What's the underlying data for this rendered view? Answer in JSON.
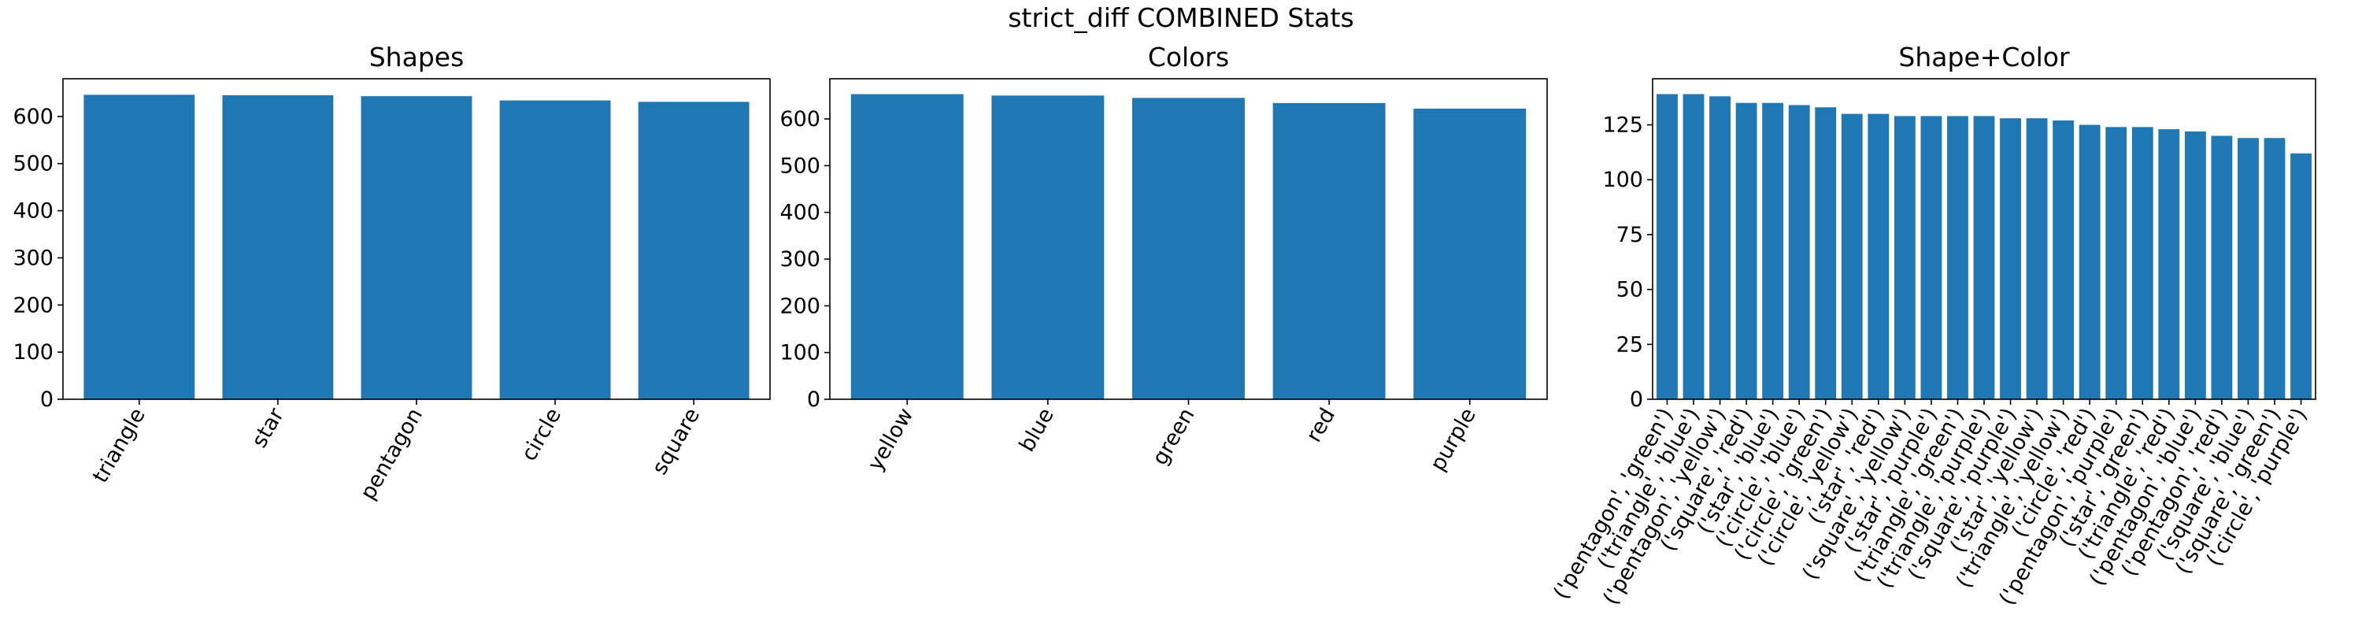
{
  "title": "strict_diff COMBINED Stats",
  "chart_data": [
    {
      "type": "bar",
      "title": "Shapes",
      "color": "#1f77b4",
      "categories": [
        "triangle",
        "star",
        "pentagon",
        "circle",
        "square"
      ],
      "values": [
        646,
        645,
        643,
        634,
        631
      ],
      "ylim": [
        0,
        680
      ],
      "yticks": [
        0,
        100,
        200,
        300,
        400,
        500,
        600
      ]
    },
    {
      "type": "bar",
      "title": "Colors",
      "color": "#1f77b4",
      "categories": [
        "yellow",
        "blue",
        "green",
        "red",
        "purple"
      ],
      "values": [
        653,
        650,
        645,
        634,
        622
      ],
      "ylim": [
        0,
        686
      ],
      "yticks": [
        0,
        100,
        200,
        300,
        400,
        500,
        600
      ]
    },
    {
      "type": "bar",
      "title": "Shape+Color",
      "color": "#1f77b4",
      "categories": [
        "('pentagon', 'green')",
        "('triangle', 'blue')",
        "('pentagon', 'yellow')",
        "('square', 'red')",
        "('star', 'blue')",
        "('circle', 'blue')",
        "('circle', 'green')",
        "('circle', 'yellow')",
        "('star', 'red')",
        "('square', 'yellow')",
        "('star', 'purple')",
        "('triangle', 'green')",
        "('triangle', 'purple')",
        "('square', 'purple')",
        "('star', 'yellow')",
        "('triangle', 'yellow')",
        "('circle', 'red')",
        "('pentagon', 'purple')",
        "('star', 'green')",
        "('triangle', 'red')",
        "('pentagon', 'blue')",
        "('pentagon', 'red')",
        "('square', 'blue')",
        "('square', 'green')",
        "('circle', 'purple')"
      ],
      "values": [
        139,
        139,
        138,
        135,
        135,
        134,
        133,
        130,
        130,
        129,
        129,
        129,
        129,
        128,
        128,
        127,
        125,
        124,
        124,
        123,
        122,
        120,
        119,
        119,
        112
      ],
      "ylim": [
        0,
        146
      ],
      "yticks": [
        0,
        25,
        50,
        75,
        100,
        125
      ]
    }
  ]
}
